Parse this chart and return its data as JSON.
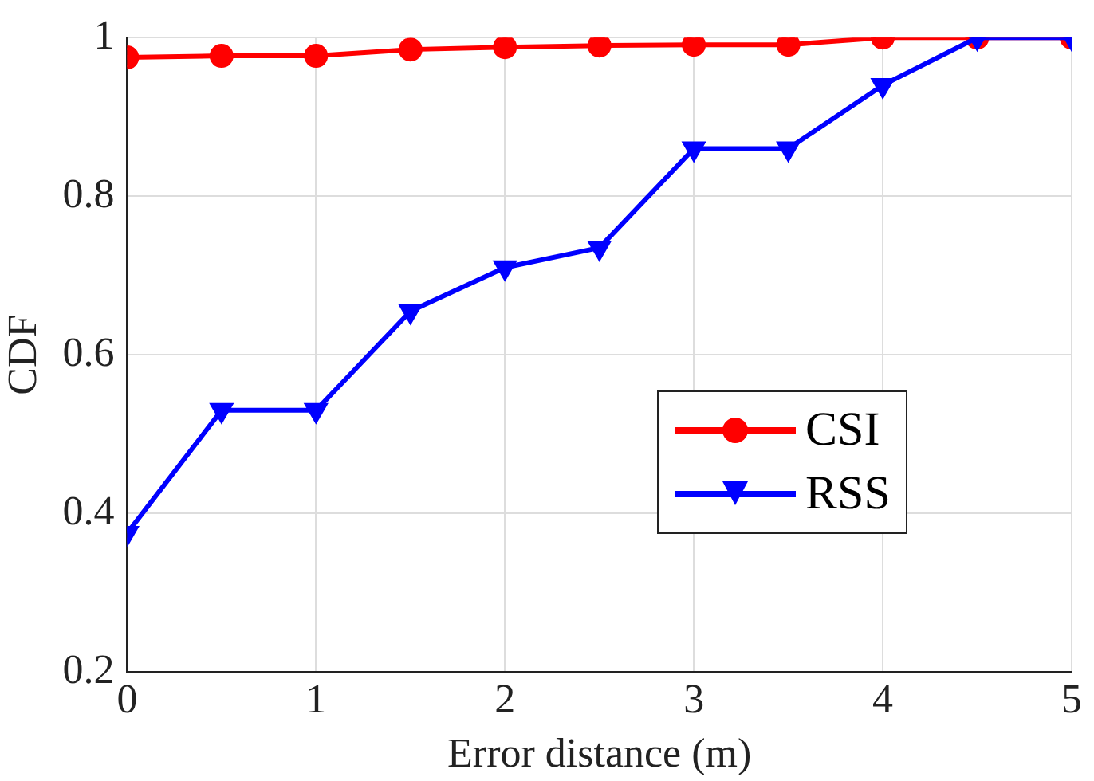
{
  "chart_data": {
    "type": "line",
    "xlabel": "Error distance (m)",
    "ylabel": "CDF",
    "x": [
      0,
      0.5,
      1,
      1.5,
      2,
      2.5,
      3,
      3.5,
      4,
      4.5,
      5
    ],
    "series": [
      {
        "name": "CSI",
        "color": "#ff0000",
        "marker": "circle",
        "values": [
          0.975,
          0.977,
          0.977,
          0.985,
          0.988,
          0.99,
          0.991,
          0.991,
          1,
          1,
          1
        ]
      },
      {
        "name": "RSS",
        "color": "#0000ff",
        "marker": "triangle",
        "values": [
          0.375,
          0.53,
          0.53,
          0.655,
          0.71,
          0.735,
          0.86,
          0.86,
          0.94,
          1,
          1
        ]
      }
    ],
    "xlim": [
      0,
      5
    ],
    "xticks": [
      0,
      1,
      2,
      3,
      4,
      5
    ],
    "ylim": [
      0.2,
      1
    ],
    "yticks": [
      0.2,
      0.4,
      0.6,
      0.8,
      1
    ],
    "grid": true,
    "legend": "right",
    "line_style": "solid"
  }
}
